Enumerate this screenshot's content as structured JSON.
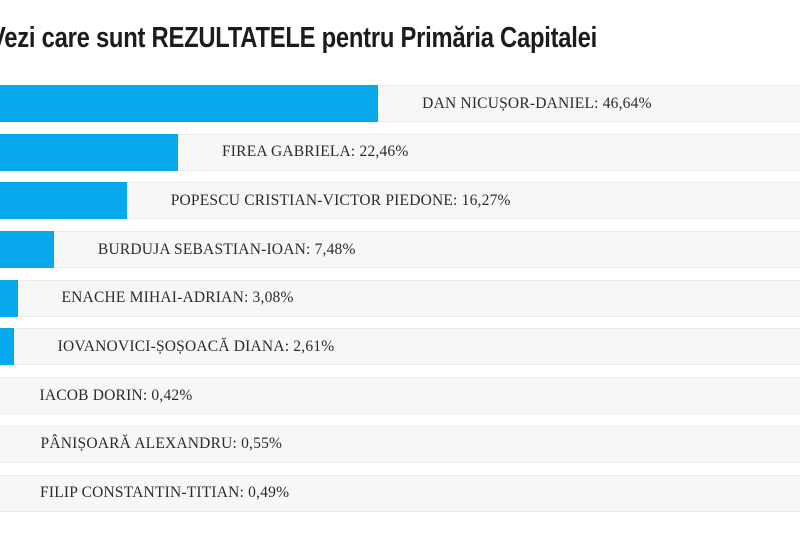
{
  "page": {
    "title": "Vezi care sunt REZULTATELE pentru Primăria Capitalei"
  },
  "chart_data": {
    "type": "bar",
    "orientation": "horizontal",
    "title": "Vezi care sunt REZULTATELE pentru Primăria Capitalei",
    "categories": [
      "DAN NICUȘOR-DANIEL",
      "FIREA GABRIELA",
      "POPESCU CRISTIAN-VICTOR PIEDONE",
      "BURDUJA SEBASTIAN-IOAN",
      "ENACHE MIHAI-ADRIAN",
      "IOVANOVICI-ȘOȘOACĂ DIANA",
      "IACOB DORIN",
      "PÂNIȘOARĂ ALEXANDRU",
      "FILIP CONSTANTIN-TITIAN"
    ],
    "values": [
      46.64,
      22.46,
      16.27,
      7.48,
      3.08,
      2.61,
      0.42,
      0.55,
      0.49
    ],
    "value_labels": [
      "46,64%",
      "22,46%",
      "16,27%",
      "7,48%",
      "3,08%",
      "2,61%",
      "0,42%",
      "0,55%",
      "0,49%"
    ],
    "label_separator": ": ",
    "xlim": [
      0,
      100
    ],
    "grid": false,
    "legend": "none",
    "bar_color": "#07a8ec",
    "track_color": "#f7f7f8",
    "track_border_color": "#ececec",
    "title_color": "#1c1c1c",
    "label_color": "#2b2b2b"
  }
}
